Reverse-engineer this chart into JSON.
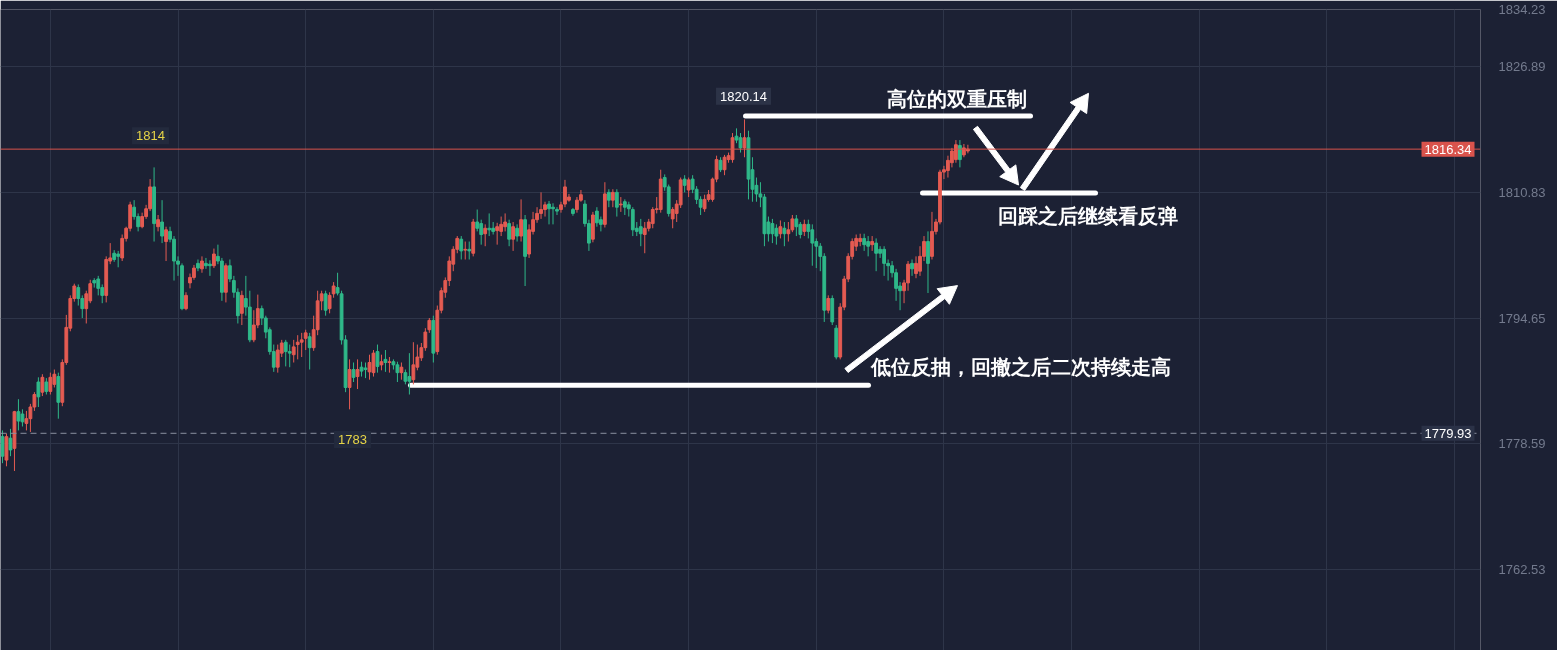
{
  "chart_data": {
    "type": "candlestick",
    "categories": [
      null,
      null,
      null,
      null,
      null,
      null,
      null,
      null,
      null,
      null,
      null,
      null,
      null,
      null,
      null,
      null,
      null,
      null,
      null,
      null,
      null,
      null,
      null,
      null,
      null,
      null,
      null,
      null,
      null,
      null,
      null,
      null,
      null,
      null,
      null,
      null,
      null,
      null,
      null,
      null,
      null,
      null,
      null,
      null,
      null,
      null,
      null,
      null,
      null,
      null,
      null,
      null,
      null,
      null,
      null,
      null,
      null,
      null,
      null,
      null,
      null,
      null,
      null,
      null,
      null,
      null,
      null,
      null,
      null,
      null,
      null,
      null,
      null,
      null,
      null,
      null,
      null,
      null,
      null,
      null,
      null,
      null,
      null,
      null,
      null,
      null,
      null,
      null,
      null,
      null,
      null,
      null,
      null,
      null,
      null,
      null,
      null,
      null,
      null,
      null,
      null,
      null,
      null,
      null,
      null,
      null,
      null,
      null,
      null,
      null,
      null,
      null,
      null,
      null,
      null,
      null,
      null,
      null,
      null,
      null,
      null,
      null,
      null,
      null,
      null,
      null,
      null,
      null,
      null,
      null,
      null,
      null,
      null,
      null,
      null,
      null,
      null,
      null,
      null,
      null,
      null,
      null,
      null,
      null,
      null,
      null,
      null,
      null,
      null,
      null,
      null,
      null,
      null,
      null,
      null,
      null,
      null,
      null,
      null,
      null,
      null,
      null,
      null,
      null,
      null,
      null,
      null,
      null,
      null,
      null,
      null,
      null,
      null,
      null,
      null,
      null,
      null,
      null,
      null,
      null,
      null,
      null,
      null,
      null,
      null,
      null,
      null,
      null,
      null,
      null,
      null,
      null,
      null,
      null,
      null,
      null,
      null,
      null,
      null,
      null,
      null,
      null,
      null,
      null,
      null,
      null,
      null,
      null,
      null,
      null,
      null,
      null,
      null,
      null,
      null,
      null,
      null,
      null,
      null,
      null,
      null,
      null,
      null,
      null,
      null,
      null,
      null,
      null,
      null,
      null,
      null,
      null,
      null,
      null,
      null,
      null,
      null,
      null,
      null,
      null,
      null,
      null,
      null,
      null,
      null,
      null,
      null,
      null,
      null,
      null,
      null,
      null,
      null,
      null,
      null,
      null,
      null,
      null,
      null,
      null,
      null,
      null,
      null,
      null,
      null,
      null,
      null,
      null,
      null,
      null,
      null,
      null,
      null,
      null,
      null,
      null,
      null,
      null,
      null,
      null,
      null,
      null,
      null,
      null,
      null,
      null,
      null,
      null,
      null,
      null,
      null,
      null,
      null,
      null,
      null,
      null,
      null,
      null,
      null,
      null,
      null,
      null,
      null,
      null,
      null,
      null,
      null,
      null,
      null,
      null,
      null,
      null,
      null,
      null,
      null,
      null,
      null,
      null,
      null,
      null,
      null,
      null,
      null,
      null,
      null,
      null,
      null,
      null,
      null,
      null,
      null,
      null,
      null,
      null,
      null,
      null,
      null,
      null,
      null,
      null,
      null,
      null,
      null,
      null,
      null,
      null,
      null,
      null,
      null,
      null,
      null,
      null,
      null,
      null,
      null,
      null,
      null,
      null,
      null,
      null,
      null,
      null,
      null,
      null,
      null,
      null,
      null,
      null,
      null,
      null,
      null
    ],
    "ohlc": [
      [
        1779.5,
        1780.3,
        1776.1,
        1777.0
      ],
      [
        1776.5,
        1779.9,
        1775.7,
        1779.5
      ],
      [
        1779.3,
        1780.5,
        1777.0,
        1777.8
      ],
      [
        1778.0,
        1782.8,
        1775.1,
        1782.7
      ],
      [
        1782.7,
        1784.3,
        1780.3,
        1781.5
      ],
      [
        1782.4,
        1783.0,
        1780.8,
        1781.4
      ],
      [
        1781.2,
        1782.8,
        1780.3,
        1781.8
      ],
      [
        1781.8,
        1783.7,
        1780.1,
        1783.3
      ],
      [
        1783.3,
        1785.2,
        1782.8,
        1784.9
      ],
      [
        1786.5,
        1787.1,
        1783.3,
        1784.6
      ],
      [
        1785.2,
        1787.5,
        1784.7,
        1787.1
      ],
      [
        1786.5,
        1787.0,
        1784.9,
        1785.3
      ],
      [
        1785.3,
        1787.7,
        1784.9,
        1787.1
      ],
      [
        1786.2,
        1788.1,
        1785.8,
        1787.5
      ],
      [
        1787.2,
        1787.7,
        1781.8,
        1783.9
      ],
      [
        1783.9,
        1789.4,
        1783.4,
        1789.0
      ],
      [
        1789.0,
        1795.1,
        1788.7,
        1793.5
      ],
      [
        1793.4,
        1797.6,
        1793.0,
        1797.2
      ],
      [
        1797.2,
        1799.1,
        1796.8,
        1798.8
      ],
      [
        1798.6,
        1799.0,
        1796.3,
        1797.2
      ],
      [
        1797.2,
        1797.6,
        1794.7,
        1795.9
      ],
      [
        1795.9,
        1798.2,
        1794.0,
        1797.8
      ],
      [
        1796.9,
        1799.6,
        1796.6,
        1799.1
      ],
      [
        1799.5,
        1799.8,
        1798.6,
        1799.2
      ],
      [
        1799.7,
        1800.1,
        1797.6,
        1798.5
      ],
      [
        1798.6,
        1799.0,
        1796.6,
        1797.6
      ],
      [
        1797.6,
        1802.6,
        1796.7,
        1802.2
      ],
      [
        1802.0,
        1804.3,
        1801.6,
        1802.4
      ],
      [
        1803.0,
        1803.4,
        1801.9,
        1802.2
      ],
      [
        1802.9,
        1803.3,
        1801.2,
        1802.6
      ],
      [
        1802.4,
        1805.4,
        1802.0,
        1804.9
      ],
      [
        1804.9,
        1806.4,
        1804.5,
        1806.2
      ],
      [
        1806.2,
        1809.6,
        1805.8,
        1809.2
      ],
      [
        1808.9,
        1809.8,
        1807.3,
        1807.7
      ],
      [
        1807.7,
        1808.1,
        1805.8,
        1806.4
      ],
      [
        1806.4,
        1808.2,
        1806.2,
        1807.7
      ],
      [
        1807.7,
        1809.2,
        1807.4,
        1808.7
      ],
      [
        1808.7,
        1812.5,
        1808.4,
        1811.5
      ],
      [
        1811.5,
        1814.0,
        1804.5,
        1806.8
      ],
      [
        1806.4,
        1807.9,
        1805.8,
        1807.3
      ],
      [
        1807.0,
        1809.8,
        1804.3,
        1805.2
      ],
      [
        1804.5,
        1806.4,
        1802.0,
        1806.0
      ],
      [
        1805.8,
        1806.4,
        1804.4,
        1804.8
      ],
      [
        1804.8,
        1805.2,
        1799.5,
        1802.0
      ],
      [
        1802.0,
        1802.6,
        1800.1,
        1801.6
      ],
      [
        1801.4,
        1801.7,
        1795.7,
        1795.9
      ],
      [
        1795.9,
        1798.0,
        1795.7,
        1797.6
      ],
      [
        1799.2,
        1800.4,
        1798.5,
        1799.9
      ],
      [
        1799.9,
        1801.5,
        1799.6,
        1801.1
      ],
      [
        1801.7,
        1802.2,
        1800.7,
        1801.1
      ],
      [
        1801.0,
        1802.6,
        1800.5,
        1802.0
      ],
      [
        1801.7,
        1802.4,
        1801.0,
        1801.4
      ],
      [
        1801.6,
        1802.1,
        1800.1,
        1801.4
      ],
      [
        1801.4,
        1803.6,
        1801.1,
        1802.9
      ],
      [
        1802.6,
        1804.1,
        1801.6,
        1802.0
      ],
      [
        1802.0,
        1802.4,
        1796.9,
        1798.0
      ],
      [
        1798.0,
        1801.7,
        1796.7,
        1801.4
      ],
      [
        1801.4,
        1802.2,
        1799.3,
        1799.7
      ],
      [
        1799.5,
        1800.1,
        1797.3,
        1798.0
      ],
      [
        1798.0,
        1798.5,
        1794.0,
        1795.0
      ],
      [
        1795.3,
        1798.2,
        1793.8,
        1797.6
      ],
      [
        1797.2,
        1800.1,
        1795.0,
        1796.1
      ],
      [
        1796.1,
        1798.2,
        1791.6,
        1791.9
      ],
      [
        1791.9,
        1795.7,
        1791.6,
        1793.8
      ],
      [
        1793.8,
        1797.7,
        1793.4,
        1795.9
      ],
      [
        1795.9,
        1796.3,
        1793.8,
        1794.7
      ],
      [
        1794.7,
        1795.0,
        1792.1,
        1792.9
      ],
      [
        1793.2,
        1793.5,
        1790.0,
        1790.4
      ],
      [
        1790.4,
        1791.3,
        1787.8,
        1788.4
      ],
      [
        1788.4,
        1791.3,
        1787.7,
        1790.6
      ],
      [
        1790.2,
        1791.9,
        1789.7,
        1791.5
      ],
      [
        1791.6,
        1791.9,
        1788.5,
        1790.4
      ],
      [
        1790.4,
        1791.3,
        1788.4,
        1790.2
      ],
      [
        1790.0,
        1791.9,
        1789.0,
        1791.0
      ],
      [
        1791.3,
        1792.5,
        1789.4,
        1791.6
      ],
      [
        1791.6,
        1792.8,
        1789.7,
        1791.9
      ],
      [
        1792.1,
        1793.2,
        1790.6,
        1792.8
      ],
      [
        1792.3,
        1792.8,
        1788.1,
        1790.9
      ],
      [
        1790.9,
        1795.0,
        1790.5,
        1793.2
      ],
      [
        1793.2,
        1798.2,
        1792.5,
        1796.9
      ],
      [
        1796.9,
        1798.2,
        1795.7,
        1797.8
      ],
      [
        1797.8,
        1798.2,
        1795.0,
        1795.7
      ],
      [
        1795.9,
        1798.0,
        1795.3,
        1797.6
      ],
      [
        1797.8,
        1799.3,
        1797.3,
        1798.8
      ],
      [
        1798.6,
        1800.5,
        1797.6,
        1797.9
      ],
      [
        1797.8,
        1798.2,
        1791.3,
        1791.9
      ],
      [
        1791.9,
        1792.5,
        1785.2,
        1785.8
      ],
      [
        1785.8,
        1789.4,
        1783.0,
        1788.1
      ],
      [
        1788.1,
        1789.0,
        1786.5,
        1787.1
      ],
      [
        1787.2,
        1789.4,
        1785.6,
        1788.1
      ],
      [
        1788.4,
        1789.1,
        1787.2,
        1787.9
      ],
      [
        1788.3,
        1789.0,
        1787.0,
        1788.1
      ],
      [
        1787.8,
        1790.0,
        1786.8,
        1789.0
      ],
      [
        1787.7,
        1790.6,
        1787.2,
        1790.2
      ],
      [
        1790.4,
        1791.3,
        1787.7,
        1788.5
      ],
      [
        1788.7,
        1790.0,
        1788.0,
        1789.1
      ],
      [
        1789.4,
        1790.6,
        1787.8,
        1789.0
      ],
      [
        1789.0,
        1789.7,
        1787.7,
        1789.1
      ],
      [
        1789.1,
        1789.4,
        1788.1,
        1788.7
      ],
      [
        1788.7,
        1789.1,
        1786.5,
        1787.7
      ],
      [
        1787.7,
        1789.0,
        1786.8,
        1788.4
      ],
      [
        1787.7,
        1788.1,
        1786.2,
        1786.6
      ],
      [
        1787.2,
        1790.2,
        1784.9,
        1786.6
      ],
      [
        1786.8,
        1791.6,
        1786.2,
        1788.7
      ],
      [
        1788.4,
        1791.3,
        1788.0,
        1789.7
      ],
      [
        1789.6,
        1791.5,
        1789.2,
        1790.9
      ],
      [
        1790.9,
        1793.4,
        1790.5,
        1792.9
      ],
      [
        1793.2,
        1794.7,
        1792.8,
        1794.4
      ],
      [
        1794.4,
        1795.0,
        1789.0,
        1790.2
      ],
      [
        1790.4,
        1796.3,
        1790.0,
        1795.7
      ],
      [
        1795.7,
        1798.6,
        1795.3,
        1798.2
      ],
      [
        1798.0,
        1799.9,
        1797.3,
        1799.5
      ],
      [
        1799.5,
        1802.6,
        1798.8,
        1802.0
      ],
      [
        1801.6,
        1803.9,
        1800.7,
        1803.5
      ],
      [
        1803.5,
        1805.2,
        1803.0,
        1804.9
      ],
      [
        1804.8,
        1805.2,
        1802.2,
        1803.3
      ],
      [
        1803.4,
        1804.5,
        1802.2,
        1803.5
      ],
      [
        1803.5,
        1804.5,
        1802.2,
        1803.3
      ],
      [
        1803.0,
        1807.4,
        1802.6,
        1807.0
      ],
      [
        1807.0,
        1808.6,
        1805.8,
        1806.2
      ],
      [
        1806.8,
        1807.3,
        1804.1,
        1805.4
      ],
      [
        1805.5,
        1806.7,
        1803.9,
        1806.2
      ],
      [
        1806.2,
        1808.1,
        1805.2,
        1806.0
      ],
      [
        1806.2,
        1807.0,
        1805.4,
        1805.8
      ],
      [
        1805.9,
        1806.9,
        1804.1,
        1806.4
      ],
      [
        1805.8,
        1807.7,
        1805.2,
        1806.7
      ],
      [
        1806.4,
        1808.1,
        1805.8,
        1807.0
      ],
      [
        1806.8,
        1807.3,
        1803.9,
        1804.8
      ],
      [
        1804.8,
        1807.0,
        1803.3,
        1806.4
      ],
      [
        1806.2,
        1806.7,
        1804.5,
        1805.2
      ],
      [
        1805.2,
        1809.9,
        1804.5,
        1807.3
      ],
      [
        1807.3,
        1807.9,
        1798.8,
        1802.6
      ],
      [
        1802.9,
        1806.7,
        1802.4,
        1806.0
      ],
      [
        1805.8,
        1808.3,
        1805.4,
        1807.3
      ],
      [
        1807.3,
        1808.9,
        1806.9,
        1808.1
      ],
      [
        1808.1,
        1810.8,
        1807.4,
        1808.6
      ],
      [
        1808.6,
        1809.6,
        1807.7,
        1809.2
      ],
      [
        1809.3,
        1809.7,
        1806.7,
        1808.7
      ],
      [
        1808.9,
        1809.4,
        1806.7,
        1808.7
      ],
      [
        1808.6,
        1808.9,
        1807.9,
        1808.4
      ],
      [
        1808.6,
        1809.6,
        1808.2,
        1809.2
      ],
      [
        1809.3,
        1812.4,
        1808.9,
        1811.5
      ],
      [
        1809.8,
        1810.6,
        1809.6,
        1810.2
      ],
      [
        1808.6,
        1808.8,
        1807.8,
        1808.1
      ],
      [
        1808.6,
        1810.2,
        1808.2,
        1809.8
      ],
      [
        1809.8,
        1811.1,
        1809.6,
        1810.5
      ],
      [
        1809.3,
        1809.8,
        1806.4,
        1806.8
      ],
      [
        1806.8,
        1807.3,
        1803.3,
        1804.3
      ],
      [
        1804.8,
        1808.3,
        1804.4,
        1807.9
      ],
      [
        1808.4,
        1808.9,
        1806.4,
        1806.9
      ],
      [
        1807.3,
        1807.7,
        1805.8,
        1806.7
      ],
      [
        1806.7,
        1812.1,
        1806.3,
        1810.6
      ],
      [
        1810.8,
        1811.2,
        1808.9,
        1809.8
      ],
      [
        1809.8,
        1811.2,
        1808.9,
        1810.8
      ],
      [
        1810.8,
        1811.2,
        1807.7,
        1808.9
      ],
      [
        1809.2,
        1810.2,
        1808.3,
        1809.3
      ],
      [
        1809.6,
        1809.9,
        1807.9,
        1808.9
      ],
      [
        1809.2,
        1809.6,
        1807.7,
        1808.7
      ],
      [
        1808.6,
        1808.9,
        1805.2,
        1806.0
      ],
      [
        1806.2,
        1807.0,
        1805.2,
        1805.8
      ],
      [
        1806.4,
        1807.4,
        1803.9,
        1805.5
      ],
      [
        1805.4,
        1807.0,
        1803.0,
        1806.2
      ],
      [
        1806.2,
        1807.4,
        1805.8,
        1807.0
      ],
      [
        1806.8,
        1808.9,
        1806.2,
        1808.6
      ],
      [
        1808.6,
        1810.2,
        1808.1,
        1808.7
      ],
      [
        1808.6,
        1813.7,
        1808.2,
        1812.5
      ],
      [
        1812.7,
        1813.1,
        1811.0,
        1811.5
      ],
      [
        1811.5,
        1811.8,
        1807.7,
        1808.1
      ],
      [
        1807.4,
        1808.9,
        1806.2,
        1808.6
      ],
      [
        1808.1,
        1809.8,
        1807.0,
        1809.3
      ],
      [
        1809.2,
        1812.7,
        1808.8,
        1812.4
      ],
      [
        1812.5,
        1813.0,
        1810.8,
        1811.7
      ],
      [
        1811.1,
        1812.7,
        1810.2,
        1812.4
      ],
      [
        1812.5,
        1813.0,
        1810.7,
        1811.2
      ],
      [
        1811.2,
        1811.6,
        1809.3,
        1809.9
      ],
      [
        1809.9,
        1810.3,
        1807.9,
        1808.9
      ],
      [
        1808.7,
        1810.5,
        1808.3,
        1809.9
      ],
      [
        1809.9,
        1811.1,
        1809.6,
        1810.5
      ],
      [
        1809.9,
        1812.7,
        1809.6,
        1812.5
      ],
      [
        1812.5,
        1815.5,
        1812.1,
        1815.0
      ],
      [
        1814.9,
        1815.3,
        1813.4,
        1813.7
      ],
      [
        1813.7,
        1815.6,
        1813.0,
        1815.3
      ],
      [
        1815.0,
        1815.9,
        1814.6,
        1815.5
      ],
      [
        1815.0,
        1818.4,
        1814.6,
        1817.8
      ],
      [
        1818.0,
        1819.0,
        1817.1,
        1817.5
      ],
      [
        1817.8,
        1818.4,
        1815.9,
        1816.5
      ],
      [
        1816.5,
        1820.14,
        1815.3,
        1817.8
      ],
      [
        1817.8,
        1818.7,
        1809.9,
        1812.5
      ],
      [
        1813.7,
        1815.3,
        1809.6,
        1811.2
      ],
      [
        1811.7,
        1812.7,
        1809.6,
        1810.6
      ],
      [
        1810.6,
        1812.1,
        1808.9,
        1810.2
      ],
      [
        1810.2,
        1810.6,
        1803.9,
        1805.5
      ],
      [
        1807.0,
        1807.7,
        1804.5,
        1805.5
      ],
      [
        1806.8,
        1807.4,
        1804.3,
        1805.5
      ],
      [
        1806.2,
        1806.7,
        1804.1,
        1805.2
      ],
      [
        1805.5,
        1807.2,
        1804.9,
        1806.4
      ],
      [
        1806.2,
        1807.0,
        1803.9,
        1805.5
      ],
      [
        1805.5,
        1807.0,
        1804.5,
        1806.0
      ],
      [
        1806.0,
        1807.9,
        1805.7,
        1807.4
      ],
      [
        1807.4,
        1807.9,
        1805.2,
        1806.4
      ],
      [
        1806.7,
        1807.0,
        1804.9,
        1805.4
      ],
      [
        1805.8,
        1807.3,
        1805.2,
        1806.7
      ],
      [
        1806.7,
        1807.3,
        1804.9,
        1805.8
      ],
      [
        1806.0,
        1806.7,
        1801.4,
        1804.3
      ],
      [
        1804.5,
        1804.9,
        1801.1,
        1803.9
      ],
      [
        1803.9,
        1804.3,
        1800.7,
        1802.6
      ],
      [
        1802.6,
        1803.0,
        1794.2,
        1795.7
      ],
      [
        1795.7,
        1797.6,
        1795.3,
        1797.2
      ],
      [
        1797.2,
        1797.6,
        1793.8,
        1794.2
      ],
      [
        1793.4,
        1793.8,
        1789.4,
        1789.7
      ],
      [
        1789.7,
        1796.6,
        1789.4,
        1796.1
      ],
      [
        1796.1,
        1800.1,
        1795.7,
        1799.7
      ],
      [
        1799.7,
        1803.0,
        1799.3,
        1802.6
      ],
      [
        1802.6,
        1804.9,
        1802.2,
        1804.5
      ],
      [
        1803.9,
        1805.4,
        1803.3,
        1804.9
      ],
      [
        1804.5,
        1805.5,
        1803.9,
        1804.9
      ],
      [
        1804.9,
        1805.5,
        1803.3,
        1804.1
      ],
      [
        1804.5,
        1805.2,
        1802.6,
        1803.9
      ],
      [
        1804.1,
        1805.2,
        1803.3,
        1804.5
      ],
      [
        1804.3,
        1804.9,
        1800.7,
        1803.0
      ],
      [
        1803.5,
        1803.9,
        1802.4,
        1803.0
      ],
      [
        1803.5,
        1803.9,
        1800.1,
        1801.7
      ],
      [
        1801.7,
        1802.2,
        1799.5,
        1801.4
      ],
      [
        1801.4,
        1802.0,
        1799.9,
        1800.5
      ],
      [
        1800.5,
        1801.0,
        1796.9,
        1798.5
      ],
      [
        1798.8,
        1799.3,
        1795.7,
        1798.2
      ],
      [
        1798.2,
        1799.6,
        1796.6,
        1799.2
      ],
      [
        1799.2,
        1802.0,
        1798.2,
        1801.6
      ],
      [
        1801.7,
        1802.2,
        1800.1,
        1801.0
      ],
      [
        1800.4,
        1802.6,
        1799.8,
        1801.7
      ],
      [
        1800.7,
        1803.9,
        1800.1,
        1802.6
      ],
      [
        1802.6,
        1805.2,
        1802.0,
        1804.5
      ],
      [
        1804.5,
        1805.8,
        1797.9,
        1801.7
      ],
      [
        1802.6,
        1808.3,
        1802.2,
        1805.8
      ],
      [
        1805.8,
        1807.4,
        1805.4,
        1807.0
      ],
      [
        1807.0,
        1813.7,
        1806.7,
        1813.4
      ],
      [
        1813.4,
        1814.2,
        1812.5,
        1813.7
      ],
      [
        1813.6,
        1815.5,
        1812.7,
        1814.9
      ],
      [
        1814.6,
        1816.5,
        1814.0,
        1816.1
      ],
      [
        1815.0,
        1817.5,
        1814.6,
        1816.9
      ],
      [
        1816.8,
        1817.5,
        1814.0,
        1815.0
      ],
      [
        1815.6,
        1817.0,
        1815.3,
        1816.5
      ],
      [
        1816.1,
        1816.9,
        1815.8,
        1816.34
      ],
      null,
      null,
      null,
      null,
      null,
      null,
      null,
      null,
      null,
      null,
      null,
      null,
      null,
      null,
      null,
      null,
      null,
      null,
      null,
      null,
      null,
      null,
      null,
      null,
      null,
      null,
      null,
      null,
      null,
      null,
      null,
      null,
      null,
      null,
      null,
      null,
      null,
      null,
      null,
      null,
      null,
      null,
      null,
      null,
      null,
      null,
      null,
      null,
      null,
      null,
      null,
      null,
      null,
      null,
      null,
      null,
      null,
      null,
      null,
      null,
      null,
      null,
      null,
      null,
      null,
      null,
      null,
      null,
      null,
      null,
      null,
      null,
      null,
      null,
      null,
      null,
      null,
      null,
      null,
      null,
      null,
      null,
      null,
      null,
      null,
      null,
      null,
      null,
      null,
      null,
      null,
      null,
      null,
      null,
      null,
      null,
      null,
      null,
      null,
      null,
      null,
      null,
      null,
      null,
      null,
      null,
      null,
      null,
      null,
      null,
      null,
      null,
      null,
      null,
      null,
      null,
      null,
      null,
      null,
      null,
      null,
      null,
      null,
      null,
      null,
      null,
      null,
      null
    ],
    "colors": [
      "#2fb889",
      "#e45b52",
      "#2fb889",
      "#e45b52",
      "#2fb889",
      "#2fb889",
      "#e45b52",
      "#e45b52",
      "#e45b52",
      "#2fb889",
      "#e45b52",
      "#2fb889",
      "#e45b52",
      "#e45b52",
      "#2fb889",
      "#e45b52",
      "#e45b52",
      "#e45b52",
      "#e45b52",
      "#2fb889",
      "#2fb889",
      "#e45b52",
      "#e45b52",
      "#2fb889",
      "#2fb889",
      "#2fb889",
      "#e45b52",
      "#e45b52",
      "#2fb889",
      "#2fb889",
      "#e45b52",
      "#e45b52",
      "#e45b52",
      "#2fb889",
      "#2fb889",
      "#e45b52",
      "#e45b52",
      "#e45b52",
      "#2fb889",
      "#e45b52",
      "#2fb889",
      "#e45b52",
      "#2fb889",
      "#2fb889",
      "#2fb889",
      "#2fb889",
      "#e45b52",
      "#e45b52",
      "#e45b52",
      "#2fb889",
      "#e45b52",
      "#2fb889",
      "#2fb889",
      "#e45b52",
      "#2fb889",
      "#2fb889",
      "#e45b52",
      "#2fb889",
      "#2fb889",
      "#2fb889",
      "#e45b52",
      "#2fb889",
      "#2fb889",
      "#e45b52",
      "#e45b52",
      "#2fb889",
      "#2fb889",
      "#2fb889",
      "#2fb889",
      "#e45b52",
      "#e45b52",
      "#2fb889",
      "#2fb889",
      "#e45b52",
      "#e45b52",
      "#e45b52",
      "#e45b52",
      "#2fb889",
      "#e45b52",
      "#e45b52",
      "#e45b52",
      "#2fb889",
      "#e45b52",
      "#e45b52",
      "#2fb889",
      "#2fb889",
      "#2fb889",
      "#e45b52",
      "#2fb889",
      "#e45b52",
      "#2fb889",
      "#2fb889",
      "#e45b52",
      "#e45b52",
      "#2fb889",
      "#e45b52",
      "#2fb889",
      "#e45b52",
      "#2fb889",
      "#2fb889",
      "#e45b52",
      "#2fb889",
      "#2fb889",
      "#e45b52",
      "#e45b52",
      "#e45b52",
      "#e45b52",
      "#e45b52",
      "#2fb889",
      "#e45b52",
      "#e45b52",
      "#e45b52",
      "#e45b52",
      "#e45b52",
      "#e45b52",
      "#2fb889",
      "#e45b52",
      "#2fb889",
      "#e45b52",
      "#2fb889",
      "#2fb889",
      "#e45b52",
      "#2fb889",
      "#2fb889",
      "#e45b52",
      "#e45b52",
      "#e45b52",
      "#2fb889",
      "#e45b52",
      "#2fb889",
      "#e45b52",
      "#2fb889",
      "#e45b52",
      "#e45b52",
      "#e45b52",
      "#e45b52",
      "#e45b52",
      "#2fb889",
      "#2fb889",
      "#2fb889",
      "#e45b52",
      "#e45b52",
      "#e45b52",
      "#2fb889",
      "#e45b52",
      "#e45b52",
      "#2fb889",
      "#2fb889",
      "#e45b52",
      "#2fb889",
      "#2fb889",
      "#e45b52",
      "#2fb889",
      "#e45b52",
      "#2fb889",
      "#e45b52",
      "#2fb889",
      "#2fb889",
      "#2fb889",
      "#2fb889",
      "#2fb889",
      "#e45b52",
      "#e45b52",
      "#e45b52",
      "#e45b52",
      "#e45b52",
      "#2fb889",
      "#2fb889",
      "#e45b52",
      "#e45b52",
      "#e45b52",
      "#2fb889",
      "#e45b52",
      "#2fb889",
      "#2fb889",
      "#2fb889",
      "#e45b52",
      "#e45b52",
      "#e45b52",
      "#e45b52",
      "#2fb889",
      "#e45b52",
      "#e45b52",
      "#e45b52",
      "#2fb889",
      "#2fb889",
      "#e45b52",
      "#2fb889",
      "#2fb889",
      "#2fb889",
      "#2fb889",
      "#2fb889",
      "#2fb889",
      "#2fb889",
      "#2fb889",
      "#e45b52",
      "#2fb889",
      "#e45b52",
      "#e45b52",
      "#2fb889",
      "#2fb889",
      "#e45b52",
      "#2fb889",
      "#2fb889",
      "#2fb889",
      "#2fb889",
      "#2fb889",
      "#e45b52",
      "#2fb889",
      "#2fb889",
      "#e45b52",
      "#e45b52",
      "#e45b52",
      "#e45b52",
      "#e45b52",
      "#e45b52",
      "#2fb889",
      "#2fb889",
      "#e45b52",
      "#2fb889",
      "#2fb889",
      "#2fb889",
      "#2fb889",
      "#2fb889",
      "#2fb889",
      "#2fb889",
      "#e45b52",
      "#e45b52",
      "#2fb889",
      "#e45b52",
      "#e45b52",
      "#e45b52",
      "#2fb889",
      "#e45b52",
      "#e45b52",
      "#e45b52",
      "#e45b52",
      "#e45b52",
      "#e45b52",
      "#e45b52",
      "#2fb889",
      "#e45b52",
      "#e45b52",
      null,
      null,
      null,
      null,
      null,
      null,
      null,
      null,
      null,
      null,
      null,
      null,
      null,
      null,
      null,
      null,
      null,
      null,
      null,
      null,
      null,
      null,
      null,
      null,
      null,
      null,
      null,
      null,
      null,
      null,
      null,
      null,
      null,
      null,
      null,
      null,
      null,
      null,
      null,
      null,
      null,
      null,
      null,
      null,
      null,
      null,
      null,
      null,
      null,
      null,
      null,
      null,
      null,
      null,
      null,
      null,
      null,
      null,
      null,
      null,
      null,
      null,
      null,
      null,
      null,
      null,
      null,
      null,
      null,
      null,
      null,
      null,
      null,
      null,
      null,
      null,
      null,
      null,
      null,
      null,
      null,
      null,
      null,
      null,
      null,
      null,
      null,
      null,
      null,
      null,
      null,
      null,
      null,
      null,
      null,
      null,
      null,
      null,
      null,
      null,
      null,
      null,
      null,
      null,
      null,
      null,
      null,
      null,
      null,
      null,
      null,
      null,
      null,
      null,
      null,
      null,
      null,
      null,
      null,
      null,
      null,
      null,
      null,
      null,
      null,
      null,
      null,
      null
    ],
    "ylim": [
      1752.1,
      1834.23
    ],
    "yticks": [
      1762.53,
      1778.59,
      1794.65,
      1810.83,
      1826.89,
      1834.23
    ],
    "grid": true,
    "tick_labels": "y",
    "ref_lines": [
      {
        "axis": "y",
        "value": 1816.34,
        "label": "1816.34",
        "color": "#d9534c"
      },
      {
        "axis": "y",
        "value": 1779.93,
        "label": "1779.93",
        "color": "#8a90a0",
        "line_style": "dashed"
      }
    ],
    "annotations": [
      "1814",
      "1820.14",
      "1783",
      "高位的双重压制",
      "回踩之后继续看反弹",
      "低位反抽，回撤之后二次持续走高"
    ]
  }
}
